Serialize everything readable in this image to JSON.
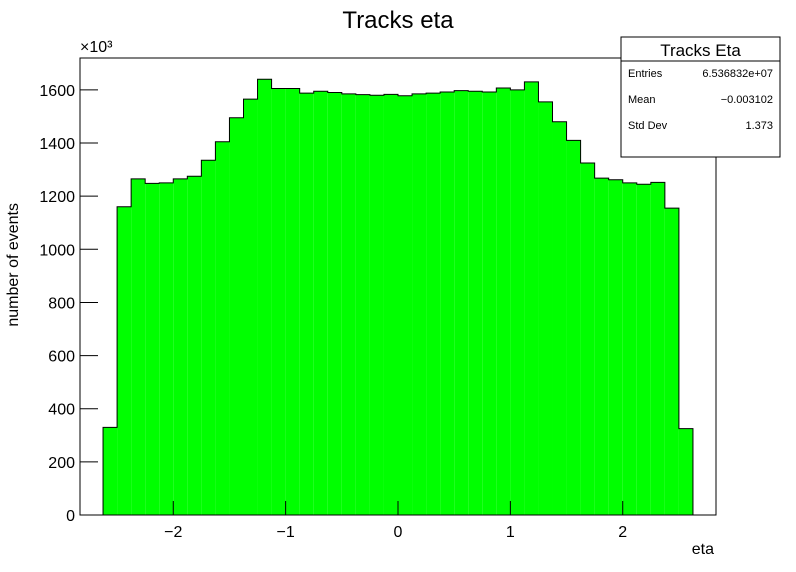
{
  "chart_data": {
    "type": "histogram",
    "title": "Tracks eta",
    "x_label": "eta",
    "y_label": "number of events",
    "y_multiplier": "×10³",
    "color": "#00ff00",
    "edge_color": "#000000",
    "xlim": [
      -2.83,
      2.83
    ],
    "ylim": [
      0,
      1720
    ],
    "xticks": [
      {
        "value": -2,
        "label": "−2"
      },
      {
        "value": -1,
        "label": "−1"
      },
      0,
      1,
      2
    ],
    "yticks": [
      0,
      200,
      400,
      600,
      800,
      1000,
      1200,
      1400,
      1600
    ],
    "bins": [
      -2.625,
      -2.5,
      -2.375,
      -2.25,
      -2.125,
      -2,
      -1.875,
      -1.75,
      -1.625,
      -1.5,
      -1.375,
      -1.25,
      -1.125,
      -1,
      -0.875,
      -0.75,
      -0.625,
      -0.5,
      -0.375,
      -0.25,
      -0.125,
      0,
      0.125,
      0.25,
      0.375,
      0.5,
      0.625,
      0.75,
      0.875,
      1,
      1.125,
      1.25,
      1.375,
      1.5,
      1.625,
      1.75,
      1.875,
      2,
      2.125,
      2.25,
      2.375,
      2.5,
      2.625
    ],
    "values": [
      330,
      1160,
      1265,
      1248,
      1250,
      1265,
      1275,
      1335,
      1405,
      1495,
      1565,
      1640,
      1605,
      1605,
      1588,
      1595,
      1590,
      1585,
      1582,
      1580,
      1583,
      1578,
      1585,
      1588,
      1592,
      1597,
      1595,
      1592,
      1607,
      1600,
      1630,
      1555,
      1480,
      1410,
      1325,
      1268,
      1262,
      1250,
      1245,
      1252,
      1155,
      325
    ],
    "stats": {
      "title": "Tracks Eta",
      "rows": [
        [
          "Entries",
          "6.536832e+07"
        ],
        [
          "Mean",
          "−0.003102"
        ],
        [
          "Std Dev",
          "1.373"
        ]
      ]
    }
  }
}
